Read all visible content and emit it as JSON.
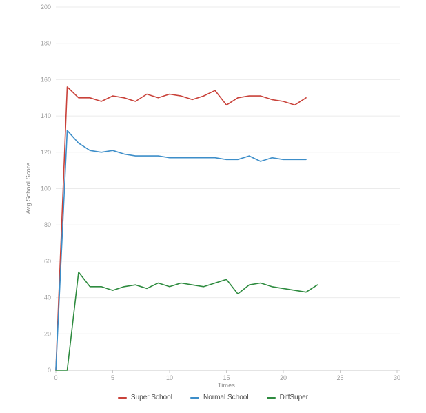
{
  "chart_data": {
    "type": "line",
    "title": "",
    "xlabel": "Times",
    "ylabel": "Avg School Score",
    "xlim": [
      0,
      30
    ],
    "ylim": [
      0,
      200
    ],
    "x_ticks": [
      0,
      5,
      10,
      15,
      20,
      25,
      30
    ],
    "y_ticks": [
      0,
      20,
      40,
      60,
      80,
      100,
      120,
      140,
      160,
      180,
      200
    ],
    "grid": "horizontal",
    "legend_position": "bottom-center",
    "series": [
      {
        "name": "Super School",
        "color": "#c9423a",
        "x": [
          0,
          1,
          2,
          3,
          4,
          5,
          6,
          7,
          8,
          9,
          10,
          11,
          12,
          13,
          14,
          15,
          16,
          17,
          18,
          19,
          20,
          21,
          22
        ],
        "values": [
          0,
          156,
          150,
          150,
          148,
          151,
          150,
          148,
          152,
          150,
          152,
          151,
          149,
          151,
          154,
          146,
          150,
          151,
          151,
          149,
          148,
          146,
          150
        ]
      },
      {
        "name": "Normal School",
        "color": "#3d8ec9",
        "x": [
          0,
          1,
          2,
          3,
          4,
          5,
          6,
          7,
          8,
          9,
          10,
          11,
          12,
          13,
          14,
          15,
          16,
          17,
          18,
          19,
          20,
          21,
          22
        ],
        "values": [
          0,
          132,
          125,
          121,
          120,
          121,
          119,
          118,
          118,
          118,
          117,
          117,
          117,
          117,
          117,
          116,
          116,
          118,
          115,
          117,
          116,
          116,
          116
        ]
      },
      {
        "name": "DiffSuper",
        "color": "#2e8b3f",
        "x": [
          0,
          1,
          2,
          3,
          4,
          5,
          6,
          7,
          8,
          9,
          10,
          11,
          12,
          13,
          14,
          15,
          16,
          17,
          18,
          19,
          20,
          21,
          22,
          23
        ],
        "values": [
          0,
          0,
          54,
          46,
          46,
          44,
          46,
          47,
          45,
          48,
          46,
          48,
          47,
          46,
          48,
          50,
          42,
          47,
          48,
          46,
          45,
          44,
          43,
          47
        ]
      }
    ],
    "colors": {
      "grid": "#ebebeb",
      "axis": "#c8c8c8",
      "tick_label": "#999999"
    }
  }
}
